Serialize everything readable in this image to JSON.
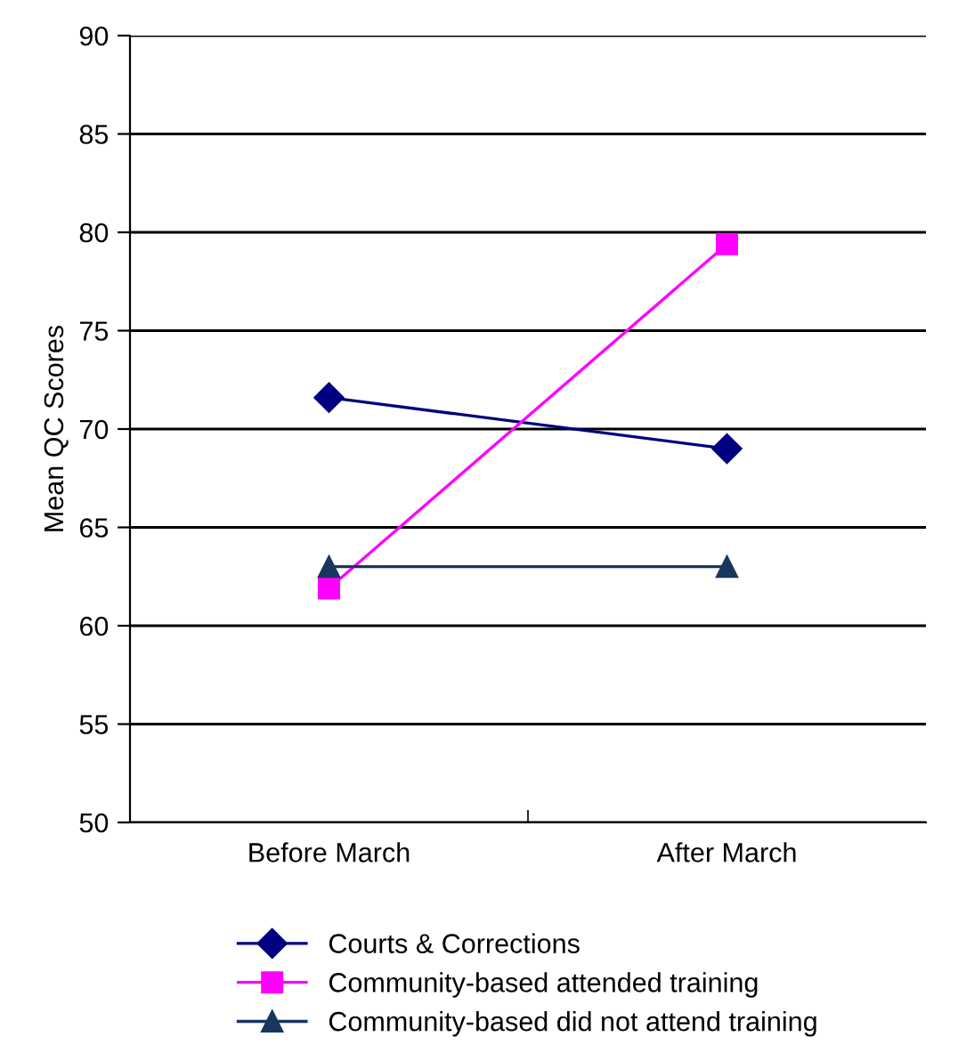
{
  "chart_data": {
    "type": "line",
    "ylabel": "Mean QC Scores",
    "categories": [
      "Before March",
      "After March"
    ],
    "series": [
      {
        "name": "Courts & Corrections",
        "color": "#000080",
        "values": [
          71.6,
          69.0
        ],
        "marker": "diamond"
      },
      {
        "name": "Community-based attended training",
        "color": "#ff00ff",
        "values": [
          61.9,
          79.4
        ],
        "marker": "square"
      },
      {
        "name": "Community-based did not attend training",
        "color": "#17375e",
        "values": [
          63.0,
          63.0
        ],
        "marker": "triangle"
      }
    ],
    "ylim": [
      50,
      90
    ],
    "yticks": [
      50,
      55,
      60,
      65,
      70,
      75,
      80,
      85,
      90
    ],
    "grid": "y",
    "legend": "bottom",
    "line_style": "solid"
  }
}
